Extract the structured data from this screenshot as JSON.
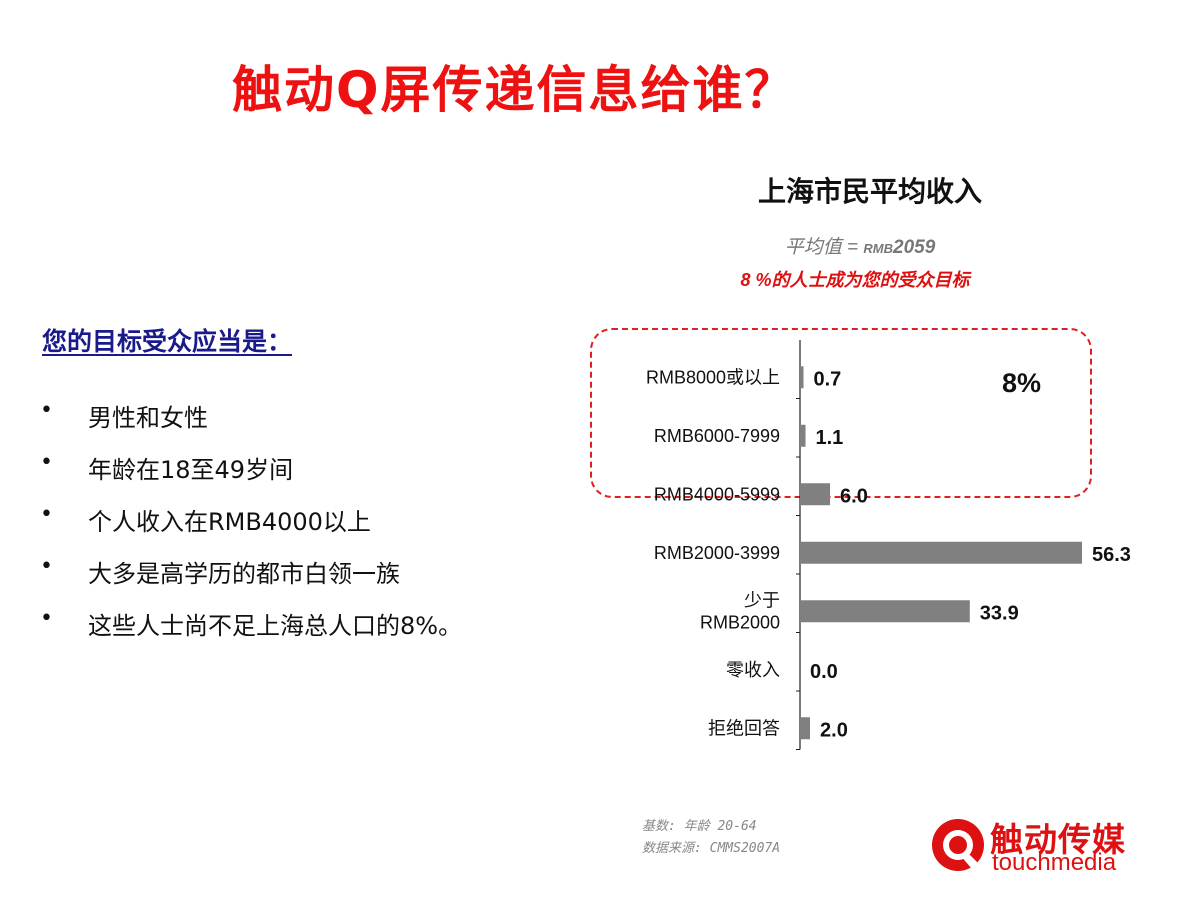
{
  "title": "触动Q屏传递信息给谁？",
  "left": {
    "heading": "您的目标受众应当是：",
    "bullet_symbol": "•",
    "bullets": [
      "男性和女性",
      "年龄在18至49岁间",
      "个人收入在RMB4000以上",
      "大多是高学历的都市白领一族",
      "这些人士尚不足上海总人口的8%。"
    ]
  },
  "chart_data": {
    "type": "bar",
    "orientation": "horizontal",
    "title": "上海市民平均收入",
    "subtitle": {
      "avg_prefix": "平均值",
      "avg_eq": "= ",
      "avg_currency": "RMB",
      "avg_value": "2059"
    },
    "target_note": "8 %的人士成为您的受众目标",
    "categories": [
      [
        "RMB8000或以上"
      ],
      [
        "RMB6000-7999"
      ],
      [
        "RMB4000-5999"
      ],
      [
        "RMB2000-3999"
      ],
      [
        "少于",
        "RMB2000"
      ],
      [
        "零收入"
      ],
      [
        "拒绝回答"
      ]
    ],
    "values": [
      0.7,
      1.1,
      6.0,
      56.3,
      33.9,
      0.0,
      2.0
    ],
    "value_labels": [
      "0.7",
      "1.1",
      "6.0",
      "56.3",
      "33.9",
      "0.0",
      "2.0"
    ],
    "highlight_label": "8%",
    "bar_color": "#808080",
    "highlight_color": "#e02020",
    "xlim": [
      0,
      56.3
    ]
  },
  "notes": {
    "base": "基数: 年龄 20-64",
    "source": "数据来源: CMMS2007A"
  },
  "logo": {
    "chinese": "触动传媒",
    "english": "touchmedia",
    "color": "#dd1111"
  }
}
